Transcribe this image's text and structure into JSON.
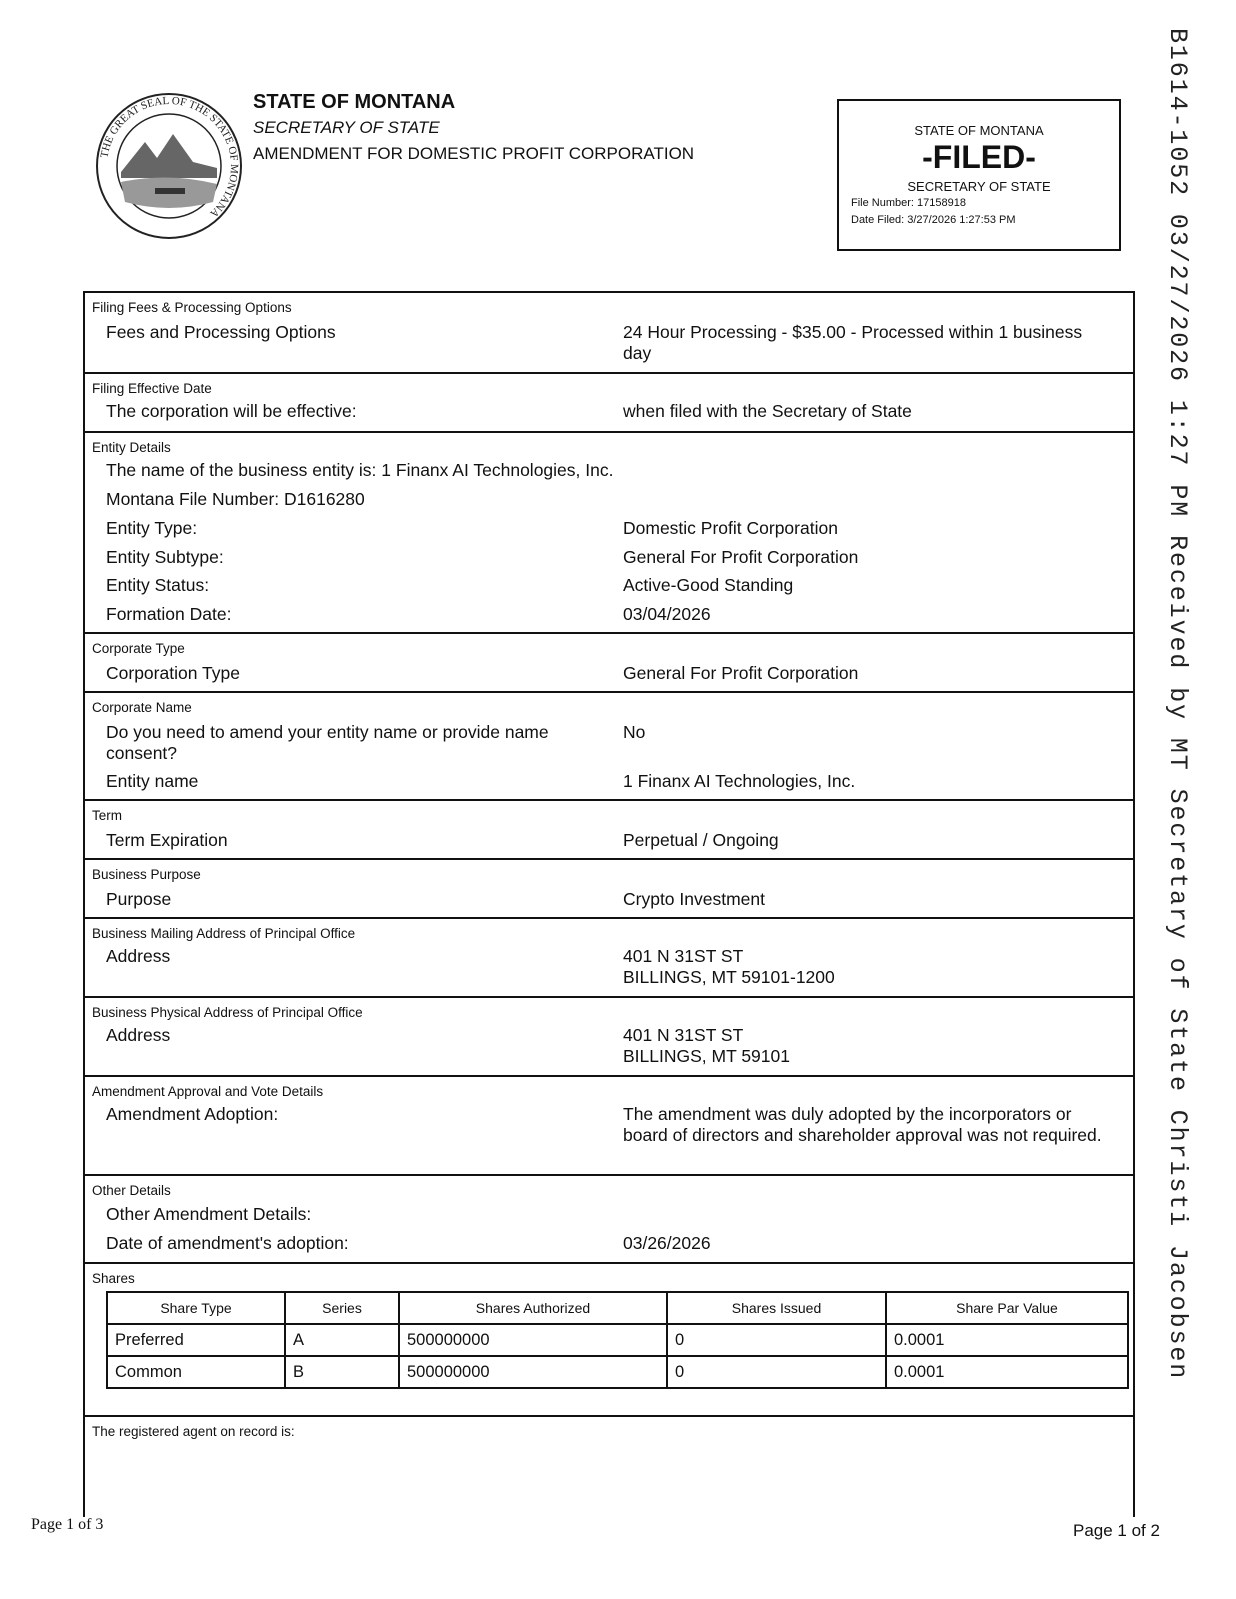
{
  "header": {
    "title": "STATE OF MONTANA",
    "subtitle": "SECRETARY OF STATE",
    "document": "AMENDMENT FOR DOMESTIC PROFIT CORPORATION",
    "seal_text": "THE GREAT SEAL OF THE STATE OF MONTANA"
  },
  "stamp": {
    "line1": "STATE OF MONTANA",
    "status": "-FILED-",
    "line3": "SECRETARY OF STATE",
    "file_number": "File Number: 17158918",
    "date_filed": "Date Filed: 3/27/2026 1:27:53 PM"
  },
  "vertical_stamp": "B1614-1052 03/27/2026 1:27 PM Received by MT Secretary of State Christi Jacobsen",
  "sections": {
    "fees": {
      "label": "Filing Fees & Processing Options",
      "q": "Fees and Processing Options",
      "a": "24 Hour Processing - $35.00 - Processed within 1 business day"
    },
    "effective": {
      "label": "Filing Effective Date",
      "q": "The corporation will be effective:",
      "a": "when filed with the Secretary of State"
    },
    "entity": {
      "label": "Entity Details",
      "name_line": "The name of the business entity is: 1 Finanx AI Technologies, Inc.",
      "file_line": "Montana File Number: D1616280",
      "rows": [
        {
          "q": "Entity Type:",
          "a": "Domestic Profit Corporation"
        },
        {
          "q": "Entity Subtype:",
          "a": "General For Profit Corporation"
        },
        {
          "q": "Entity Status:",
          "a": "Active-Good Standing"
        },
        {
          "q": "Formation Date:",
          "a": "03/04/2026"
        }
      ]
    },
    "corp_type": {
      "label": "Corporate Type",
      "q": "Corporation Type",
      "a": "General For Profit Corporation"
    },
    "corp_name": {
      "label": "Corporate Name",
      "q1": "Do you need to amend your entity name or provide name consent?",
      "a1": "No",
      "q2": "Entity name",
      "a2": "1 Finanx AI Technologies, Inc."
    },
    "term": {
      "label": "Term",
      "q": "Term Expiration",
      "a": "Perpetual / Ongoing"
    },
    "purpose": {
      "label": "Business Purpose",
      "q": "Purpose",
      "a": "Crypto Investment"
    },
    "mailing": {
      "label": "Business Mailing Address of Principal Office",
      "q": "Address",
      "a1": "401 N 31ST ST",
      "a2": "BILLINGS, MT 59101-1200"
    },
    "physical": {
      "label": "Business Physical Address of Principal Office",
      "q": "Address",
      "a1": "401 N 31ST ST",
      "a2": "BILLINGS, MT 59101"
    },
    "amendment": {
      "label": "Amendment Approval and Vote Details",
      "q": "Amendment Adoption:",
      "a": "The amendment was duly adopted by the incorporators or board of directors and shareholder approval was not required."
    },
    "other": {
      "label": "Other Details",
      "q1": "Other Amendment Details:",
      "q2": "Date of amendment's adoption:",
      "a2": "03/26/2026"
    },
    "shares": {
      "label": "Shares",
      "headers": [
        "Share Type",
        "Series",
        "Shares Authorized",
        "Shares Issued",
        "Share Par Value"
      ],
      "rows": [
        [
          "Preferred",
          "A",
          "500000000",
          "0",
          "0.0001"
        ],
        [
          "Common",
          "B",
          "500000000",
          "0",
          "0.0001"
        ]
      ]
    },
    "agent": {
      "label": "The registered agent on record is:"
    }
  },
  "footer": {
    "left": "Page 1 of 3",
    "right": "Page 1 of 2"
  }
}
